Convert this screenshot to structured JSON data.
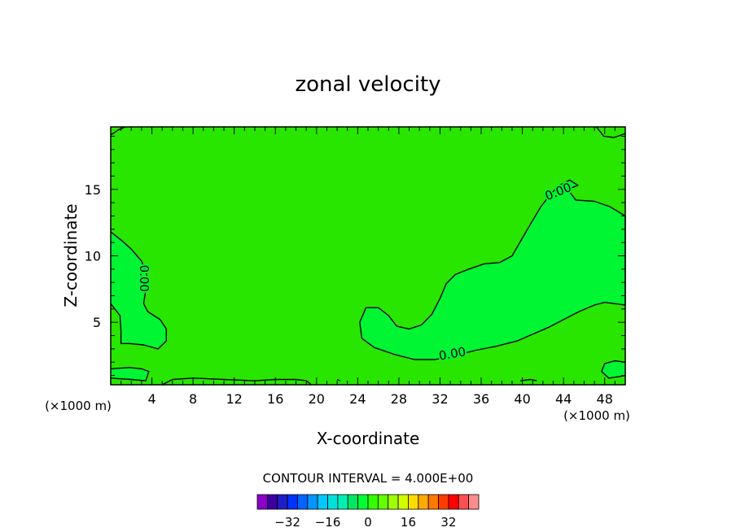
{
  "chart_data": {
    "type": "contour",
    "title": "zonal velocity",
    "xlabel": "X-coordinate",
    "ylabel": "Z-coordinate",
    "x_unit": "(×1000 m)",
    "xlim": [
      0,
      50
    ],
    "ylim": [
      0.3,
      19.7
    ],
    "x_ticks": [
      4,
      8,
      12,
      16,
      20,
      24,
      28,
      32,
      36,
      40,
      44,
      48
    ],
    "y_ticks": [
      5,
      10,
      15
    ],
    "contour_interval_text": "CONTOUR INTERVAL = 4.000E+00",
    "contour_labels": [
      {
        "text": "0.00",
        "x": 43.5,
        "y": 14.8,
        "angle": -22
      },
      {
        "text": "0.00",
        "x": 3.2,
        "y": 8.3,
        "angle": 90
      },
      {
        "text": "0.00",
        "x": 33.2,
        "y": 2.6,
        "angle": -10
      }
    ],
    "colorbar": {
      "colors": [
        "#8c00c8",
        "#3c00a0",
        "#1e1ec8",
        "#0032ff",
        "#0064ff",
        "#0096ff",
        "#00c8ff",
        "#00e1dc",
        "#00f0b4",
        "#00e664",
        "#00ff32",
        "#32ff00",
        "#64ff00",
        "#a0ff00",
        "#d2ff00",
        "#ffdc00",
        "#ffaa00",
        "#ff7800",
        "#ff3c00",
        "#ff0000",
        "#ff5050",
        "#ff8c8c"
      ],
      "tick_labels": [
        "−32",
        "−16",
        "0",
        "16",
        "32"
      ],
      "tick_values": [
        -32,
        -16,
        0,
        16,
        32
      ]
    },
    "fill_colors": {
      "background_band": "#28e600",
      "positive_band": "#00f532"
    },
    "zero_contours": [
      {
        "name": "right-lobe",
        "points": [
          [
            24.8,
            6.1
          ],
          [
            24.2,
            5.0
          ],
          [
            24.4,
            3.8
          ],
          [
            25.6,
            3.1
          ],
          [
            27.5,
            2.6
          ],
          [
            29.5,
            2.2
          ],
          [
            31.5,
            2.2
          ],
          [
            33.5,
            2.5
          ],
          [
            35.5,
            2.9
          ],
          [
            37.5,
            3.2
          ],
          [
            39.5,
            3.6
          ],
          [
            41.0,
            4.1
          ],
          [
            42.5,
            4.6
          ],
          [
            44.0,
            5.2
          ],
          [
            45.5,
            5.8
          ],
          [
            47.0,
            6.3
          ],
          [
            48.0,
            6.5
          ],
          [
            50.0,
            6.3
          ],
          [
            50.0,
            13.0
          ],
          [
            48.5,
            13.7
          ],
          [
            47.0,
            14.1
          ],
          [
            45.2,
            14.2
          ],
          [
            44.4,
            15.0
          ],
          [
            45.4,
            15.3
          ],
          [
            44.6,
            15.7
          ],
          [
            43.6,
            15.3
          ],
          [
            42.7,
            14.6
          ],
          [
            41.8,
            13.7
          ],
          [
            40.8,
            12.4
          ],
          [
            39.9,
            11.2
          ],
          [
            39.0,
            10.0
          ],
          [
            37.8,
            9.5
          ],
          [
            36.3,
            9.4
          ],
          [
            34.8,
            9.0
          ],
          [
            33.5,
            8.6
          ],
          [
            32.6,
            7.9
          ],
          [
            32.0,
            6.8
          ],
          [
            31.2,
            5.6
          ],
          [
            30.2,
            4.8
          ],
          [
            29.0,
            4.5
          ],
          [
            27.8,
            4.7
          ],
          [
            27.0,
            5.5
          ],
          [
            26.0,
            6.1
          ],
          [
            24.8,
            6.1
          ]
        ]
      },
      {
        "name": "left-lobe",
        "points": [
          [
            0.0,
            11.8
          ],
          [
            1.0,
            11.2
          ],
          [
            2.0,
            10.5
          ],
          [
            3.0,
            9.6
          ],
          [
            3.5,
            8.6
          ],
          [
            3.4,
            7.4
          ],
          [
            3.2,
            6.4
          ],
          [
            3.6,
            5.8
          ],
          [
            4.8,
            5.2
          ],
          [
            5.4,
            4.5
          ],
          [
            5.4,
            3.6
          ],
          [
            4.6,
            3.0
          ],
          [
            3.2,
            3.3
          ],
          [
            1.8,
            3.4
          ],
          [
            1.0,
            3.4
          ],
          [
            1.0,
            4.3
          ],
          [
            0.9,
            5.5
          ],
          [
            0.0,
            6.4
          ]
        ]
      },
      {
        "name": "top-left",
        "points": [
          [
            0.0,
            19.1
          ],
          [
            0.8,
            19.5
          ],
          [
            1.4,
            19.7
          ]
        ]
      },
      {
        "name": "top-right",
        "points": [
          [
            47.2,
            19.7
          ],
          [
            47.9,
            19.0
          ],
          [
            48.9,
            18.9
          ],
          [
            50.0,
            19.2
          ]
        ]
      },
      {
        "name": "bottom-right",
        "points": [
          [
            50.0,
            2.0
          ],
          [
            49.0,
            2.1
          ],
          [
            48.0,
            1.9
          ],
          [
            47.7,
            1.3
          ],
          [
            48.4,
            0.8
          ],
          [
            49.3,
            0.9
          ],
          [
            50.0,
            1.0
          ]
        ]
      },
      {
        "name": "bottom-left",
        "points": [
          [
            0.0,
            1.5
          ],
          [
            1.8,
            1.6
          ],
          [
            3.0,
            1.5
          ],
          [
            3.7,
            1.3
          ],
          [
            3.4,
            0.6
          ],
          [
            2.0,
            0.7
          ],
          [
            0.0,
            0.8
          ]
        ]
      },
      {
        "name": "bottom-line",
        "points": [
          [
            5.0,
            0.3
          ],
          [
            6.0,
            0.7
          ],
          [
            8.0,
            0.8
          ],
          [
            11.0,
            0.7
          ],
          [
            14.0,
            0.6
          ],
          [
            16.0,
            0.7
          ],
          [
            18.0,
            0.7
          ],
          [
            19.0,
            0.6
          ],
          [
            19.5,
            0.3
          ]
        ]
      },
      {
        "name": "bottom-dots",
        "points": [
          [
            22.0,
            0.7
          ],
          [
            22.3,
            0.6
          ]
        ]
      },
      {
        "name": "bottom-nub",
        "points": [
          [
            39.8,
            0.6
          ],
          [
            40.8,
            0.7
          ],
          [
            41.4,
            0.6
          ]
        ]
      }
    ]
  }
}
